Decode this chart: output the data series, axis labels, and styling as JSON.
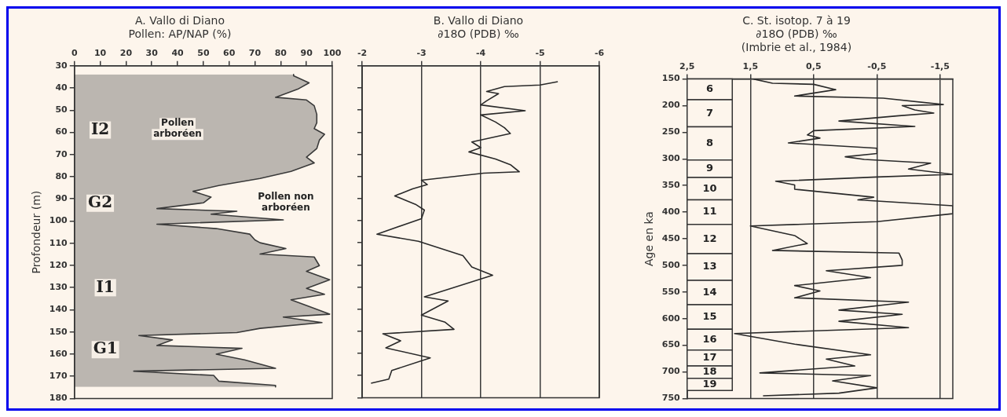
{
  "chart_data": [
    {
      "type": "area",
      "orientation": "horizontal",
      "title": "A. Vallo di Diano",
      "subtitle": "Pollen: AP/NAP (%)",
      "ylabel": "Profondeur (m)",
      "xlim": [
        0,
        100
      ],
      "xticks": [
        0,
        10,
        20,
        30,
        40,
        50,
        60,
        70,
        80,
        90,
        100
      ],
      "ylim": [
        180,
        30
      ],
      "yticks": [
        30,
        40,
        50,
        60,
        70,
        80,
        90,
        100,
        110,
        120,
        130,
        140,
        150,
        160,
        170,
        180
      ],
      "series": [
        {
          "color": "#3a3a3a",
          "x": [
            33.9,
            34.5,
            37.7,
            40.3,
            44.2,
            45.4,
            48,
            51.9,
            55.7,
            58.3,
            60.9,
            63.5,
            67.3,
            71.2,
            73.8,
            77.6,
            80.8,
            84,
            86.6,
            89.2,
            91.8,
            94.4,
            95.6,
            96.9,
            99.5,
            101.4,
            103.4,
            105.9,
            108.5,
            109.8,
            112.4,
            114.9,
            116.2,
            120.1,
            122.7,
            126.5,
            130.4,
            133,
            135.5,
            138.1,
            142,
            143.3,
            145.8,
            148.4,
            150.3,
            151.6,
            153.6,
            156.1,
            157.4,
            160,
            162.6,
            166.4,
            167.7,
            169.6,
            172.2,
            174.1,
            174.8
          ],
          "values": [
            85,
            85,
            91,
            87,
            78,
            90,
            93,
            94,
            94,
            93,
            97,
            95,
            94,
            90,
            93,
            84,
            72,
            56,
            46,
            53,
            50,
            32,
            63,
            53,
            81,
            32,
            55,
            68,
            70,
            72,
            82,
            72,
            93,
            95,
            90,
            99,
            90,
            97,
            84,
            90,
            99,
            81,
            96,
            72,
            63,
            25,
            38,
            32,
            65,
            55,
            66,
            78,
            23,
            54,
            56,
            78,
            78
          ]
        }
      ],
      "annotations": [
        "Pollen arboréen",
        "Pollen non arboréen",
        "I2",
        "G2",
        "I1",
        "G1"
      ]
    },
    {
      "type": "line",
      "orientation": "horizontal",
      "title": "B. Vallo di Diano",
      "subtitle": "∂18O (PDB) ‰",
      "grid": "x",
      "tick_labels": "x",
      "xlim": [
        -2,
        -6
      ],
      "xticks": [
        -2,
        -3,
        -4,
        -5,
        -6
      ],
      "ylim": [
        180,
        30
      ],
      "yticks": [
        30,
        40,
        50,
        60,
        70,
        80,
        90,
        100,
        110,
        120,
        130,
        140,
        150,
        160,
        170,
        180
      ],
      "series": [
        {
          "color": "#2a2a2a",
          "x": [
            37.2,
            38.7,
            39.4,
            41.6,
            42.6,
            45.8,
            47.7,
            50.3,
            52.2,
            55.4,
            58,
            60.6,
            64.4,
            67,
            68.9,
            72.1,
            74.7,
            77.9,
            78.5,
            81.7,
            83.7,
            85.6,
            88.8,
            92.6,
            95.2,
            99.1,
            106.1,
            109.3,
            115.8,
            120.9,
            124.7,
            134.4,
            136.3,
            142.7,
            145.9,
            149.1,
            151.1,
            154.3,
            157.5,
            162,
            167.7,
            171.6,
            173.5
          ],
          "values": [
            -5.3,
            -5.0,
            -4.4,
            -4.1,
            -4.3,
            -4.1,
            -4.0,
            -4.75,
            -4.0,
            -4.25,
            -4.4,
            -4.5,
            -3.85,
            -4.0,
            -3.8,
            -4.25,
            -4.5,
            -4.65,
            -4.05,
            -3.0,
            -3.1,
            -2.85,
            -2.55,
            -2.9,
            -3.05,
            -3.0,
            -2.25,
            -2.95,
            -3.7,
            -3.85,
            -4.2,
            -3.05,
            -3.45,
            -3.0,
            -3.4,
            -3.55,
            -2.35,
            -2.65,
            -2.4,
            -3.15,
            -2.5,
            -2.45,
            -2.15
          ]
        }
      ]
    },
    {
      "type": "line",
      "orientation": "horizontal",
      "title": "C. St. isotop. 7 à 19",
      "subtitle": "∂18O (PDB) ‰\n(Imbrie et al., 1984)",
      "ylabel": "Age en ka",
      "grid": "x",
      "xlim": [
        2.5,
        -1.7
      ],
      "xticks": [
        {
          "value": 2.5,
          "label": "2,5"
        },
        {
          "value": 1.5,
          "label": "1,5"
        },
        {
          "value": 0.5,
          "label": "0,5"
        },
        {
          "value": -0.5,
          "label": "-0,5"
        },
        {
          "value": -1.5,
          "label": "-1,5"
        }
      ],
      "ylim": [
        750,
        150
      ],
      "yticks": [
        150,
        200,
        250,
        300,
        350,
        400,
        450,
        500,
        550,
        600,
        650,
        700,
        750
      ],
      "bands": [
        {
          "axis": "y",
          "from": 150,
          "to": 189,
          "label": "6"
        },
        {
          "axis": "y",
          "from": 189,
          "to": 240,
          "label": "7"
        },
        {
          "axis": "y",
          "from": 240,
          "to": 302,
          "label": "8"
        },
        {
          "axis": "y",
          "from": 302,
          "to": 335,
          "label": "9"
        },
        {
          "axis": "y",
          "from": 335,
          "to": 377,
          "label": "10"
        },
        {
          "axis": "y",
          "from": 377,
          "to": 423,
          "label": "11"
        },
        {
          "axis": "y",
          "from": 423,
          "to": 478,
          "label": "12"
        },
        {
          "axis": "y",
          "from": 478,
          "to": 528,
          "label": "13"
        },
        {
          "axis": "y",
          "from": 528,
          "to": 574,
          "label": "14"
        },
        {
          "axis": "y",
          "from": 574,
          "to": 620,
          "label": "15"
        },
        {
          "axis": "y",
          "from": 620,
          "to": 659,
          "label": "16"
        },
        {
          "axis": "y",
          "from": 659,
          "to": 689,
          "label": "17"
        },
        {
          "axis": "y",
          "from": 689,
          "to": 712,
          "label": "18"
        },
        {
          "axis": "y",
          "from": 712,
          "to": 735,
          "label": "19"
        }
      ],
      "series": [
        {
          "color": "#2a2a2a",
          "x": [
            150,
            158,
            160,
            170,
            182,
            186,
            198,
            200,
            208,
            214,
            219,
            229,
            239,
            247,
            255,
            261,
            270,
            280,
            290,
            296,
            301,
            308,
            319,
            329,
            334,
            342,
            349,
            357,
            372,
            377,
            388,
            403,
            418,
            426,
            444,
            459,
            472,
            477,
            490,
            500,
            510,
            523,
            538,
            548,
            561,
            569,
            584,
            592,
            605,
            617,
            628,
            648,
            668,
            676,
            689,
            702,
            707,
            717,
            730,
            740,
            745
          ],
          "values": [
            1.45,
            1.15,
            0.5,
            0.15,
            0.8,
            -0.6,
            -1.55,
            -0.9,
            -1.1,
            -1.4,
            -0.85,
            0.1,
            -1.1,
            0.5,
            0.6,
            0.4,
            0.9,
            -0.5,
            -0.5,
            0.0,
            -0.3,
            -1.35,
            -1.0,
            -1.7,
            -0.5,
            1.1,
            0.8,
            0.8,
            -0.45,
            -0.2,
            -1.7,
            -1.7,
            -0.5,
            1.5,
            0.8,
            0.6,
            1.15,
            -0.85,
            -0.9,
            -0.9,
            0.3,
            -0.4,
            0.8,
            0.4,
            0.8,
            -1.0,
            0.1,
            -0.9,
            0.1,
            -1.0,
            1.75,
            0.8,
            -0.4,
            0.3,
            -0.15,
            1.35,
            -0.4,
            0.2,
            -0.5,
            0.1,
            1.3
          ]
        }
      ]
    }
  ]
}
